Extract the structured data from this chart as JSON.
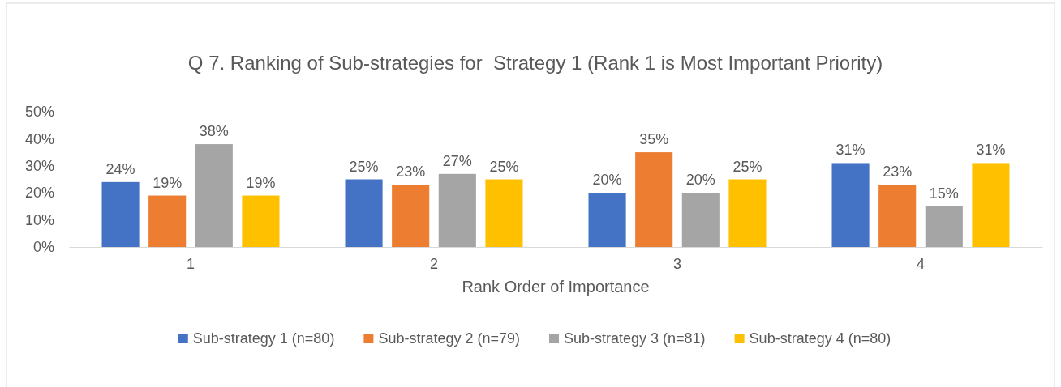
{
  "chart_data": {
    "type": "bar",
    "title": "Q 7. Ranking of Sub-strategies for  Strategy 1 (Rank 1 is Most Important Priority)",
    "xlabel": "Rank Order of Importance",
    "categories": [
      "1",
      "2",
      "3",
      "4"
    ],
    "series": [
      {
        "name": "Sub-strategy 1 (n=80)",
        "color": "#4472c4",
        "values": [
          24,
          25,
          20,
          31
        ],
        "value_labels": [
          "24%",
          "25%",
          "20%",
          "31%"
        ]
      },
      {
        "name": "Sub-strategy 2 (n=79)",
        "color": "#ed7d31",
        "values": [
          19,
          23,
          35,
          23
        ],
        "value_labels": [
          "19%",
          "23%",
          "35%",
          "23%"
        ]
      },
      {
        "name": "Sub-strategy 3 (n=81)",
        "color": "#a5a5a5",
        "values": [
          38,
          27,
          20,
          15
        ],
        "value_labels": [
          "38%",
          "27%",
          "20%",
          "15%"
        ]
      },
      {
        "name": "Sub-strategy 4 (n=80)",
        "color": "#ffc000",
        "values": [
          19,
          25,
          25,
          31
        ],
        "value_labels": [
          "19%",
          "25%",
          "25%",
          "31%"
        ]
      }
    ],
    "ylim": [
      0,
      50
    ],
    "yticks": [
      {
        "value": 0,
        "label": "0%"
      },
      {
        "value": 10,
        "label": "10%"
      },
      {
        "value": 20,
        "label": "20%"
      },
      {
        "value": 30,
        "label": "30%"
      },
      {
        "value": 40,
        "label": "40%"
      },
      {
        "value": 50,
        "label": "50%"
      }
    ],
    "grid": false,
    "legend": "bottom"
  }
}
